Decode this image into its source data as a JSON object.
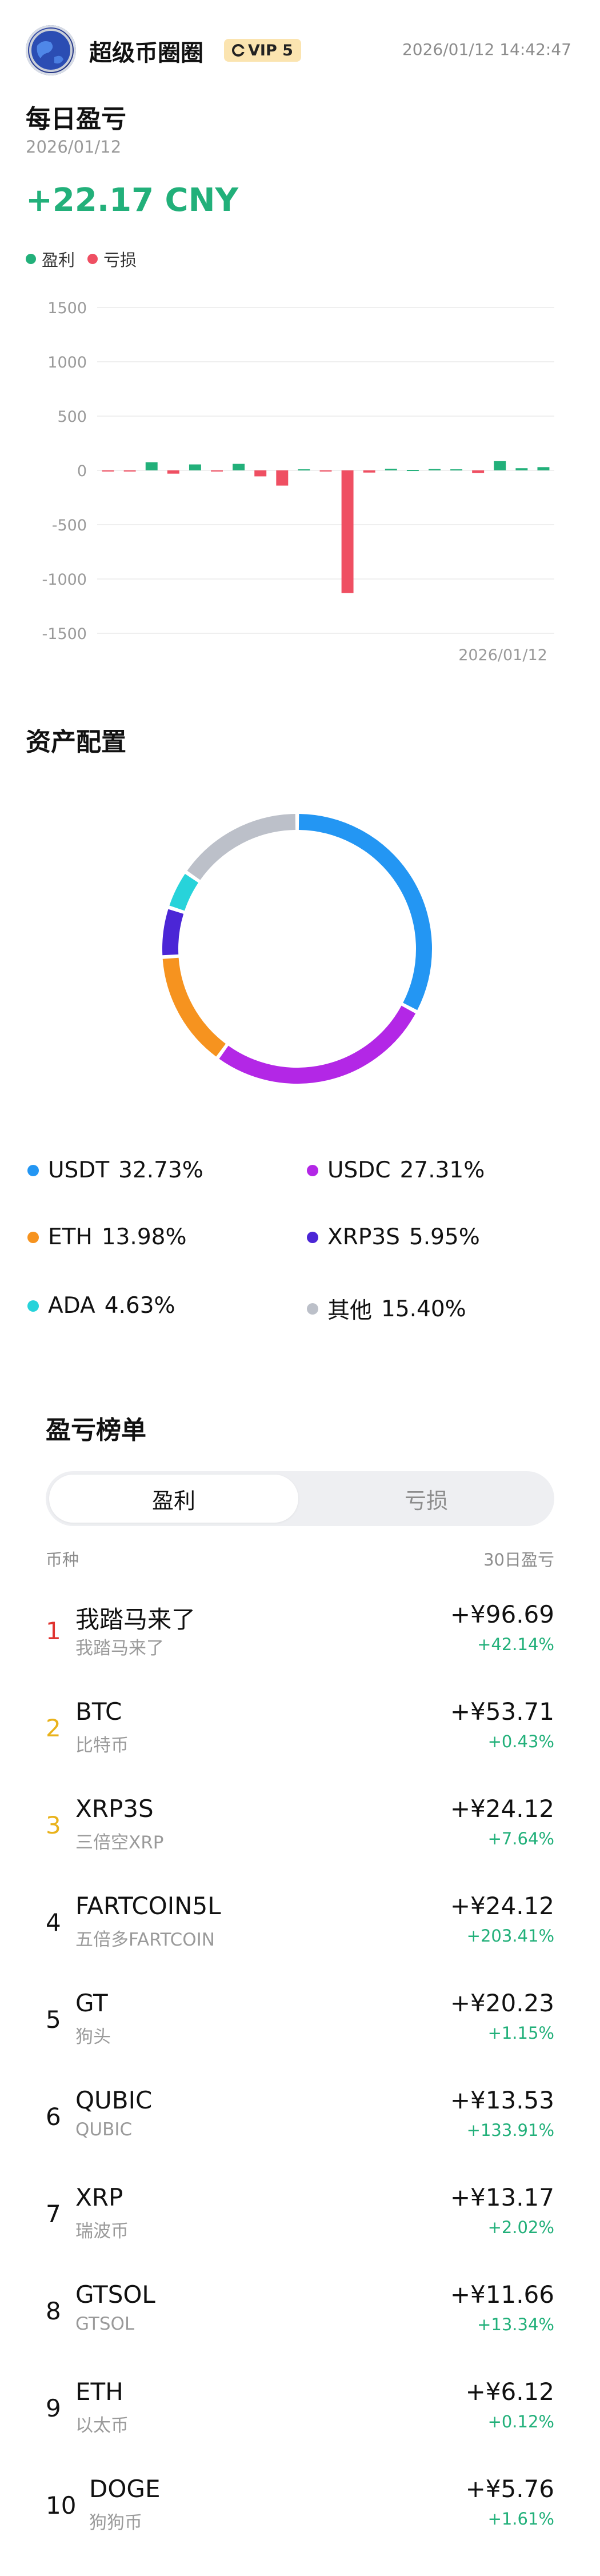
{
  "header": {
    "username": "超级币圈圈",
    "vip_label": "VIP 5",
    "datetime": "2026/01/12 14:42:47"
  },
  "daily_pnl": {
    "title": "每日盈亏",
    "date": "2026/01/12",
    "total": "+22.17 CNY",
    "legend_profit": "盈利",
    "legend_loss": "亏损"
  },
  "chart_data": {
    "type": "bar",
    "x_label_shown": "2026/01/12",
    "ylim": [
      -1500,
      1500
    ],
    "y_ticks": [
      1500,
      1000,
      500,
      0,
      -500,
      -1000,
      -1500
    ],
    "y_tick_labels": [
      "1500",
      "1000",
      "500",
      "0",
      "-500",
      "-1000",
      "-1500"
    ],
    "values": [
      -8,
      -3,
      75,
      -30,
      55,
      -8,
      60,
      -55,
      -140,
      10,
      -5,
      -1130,
      -20,
      15,
      5,
      12,
      10,
      -25,
      85,
      20,
      30
    ],
    "colors": {
      "profit": "#22b07a",
      "loss": "#ef4f62"
    }
  },
  "assets": {
    "title": "资产配置",
    "items": [
      {
        "name": "USDT",
        "percent": "32.73%",
        "value": 32.73,
        "color": "#2396f3"
      },
      {
        "name": "USDC",
        "percent": "27.31%",
        "value": 27.31,
        "color": "#b327e6"
      },
      {
        "name": "ETH",
        "percent": "13.98%",
        "value": 13.98,
        "color": "#f6931f"
      },
      {
        "name": "XRP3S",
        "percent": "5.95%",
        "value": 5.95,
        "color": "#4b26d6"
      },
      {
        "name": "ADA",
        "percent": "4.63%",
        "value": 4.63,
        "color": "#27d3da"
      },
      {
        "name": "其他",
        "percent": "15.40%",
        "value": 15.4,
        "color": "#bcc0c9"
      }
    ]
  },
  "ranking": {
    "title": "盈亏榜单",
    "tab_profit": "盈利",
    "tab_loss": "亏损",
    "col_coin": "币种",
    "col_30d": "30日盈亏",
    "rows": [
      {
        "rank": "1",
        "rank_color": "#e0332f",
        "name": "我踏马来了",
        "cname": "我踏马来了",
        "amount": "+¥96.69",
        "pct": "+42.14%"
      },
      {
        "rank": "2",
        "rank_color": "#e9b21a",
        "name": "BTC",
        "cname": "比特币",
        "amount": "+¥53.71",
        "pct": "+0.43%"
      },
      {
        "rank": "3",
        "rank_color": "#e9b21a",
        "name": "XRP3S",
        "cname": "三倍空XRP",
        "amount": "+¥24.12",
        "pct": "+7.64%"
      },
      {
        "rank": "4",
        "rank_color": "#111111",
        "name": "FARTCOIN5L",
        "cname": "五倍多FARTCOIN",
        "amount": "+¥24.12",
        "pct": "+203.41%"
      },
      {
        "rank": "5",
        "rank_color": "#111111",
        "name": "GT",
        "cname": "狗头",
        "amount": "+¥20.23",
        "pct": "+1.15%"
      },
      {
        "rank": "6",
        "rank_color": "#111111",
        "name": "QUBIC",
        "cname": "QUBIC",
        "amount": "+¥13.53",
        "pct": "+133.91%"
      },
      {
        "rank": "7",
        "rank_color": "#111111",
        "name": "XRP",
        "cname": "瑞波币",
        "amount": "+¥13.17",
        "pct": "+2.02%"
      },
      {
        "rank": "8",
        "rank_color": "#111111",
        "name": "GTSOL",
        "cname": "GTSOL",
        "amount": "+¥11.66",
        "pct": "+13.34%"
      },
      {
        "rank": "9",
        "rank_color": "#111111",
        "name": "ETH",
        "cname": "以太币",
        "amount": "+¥6.12",
        "pct": "+0.12%"
      },
      {
        "rank": "10",
        "rank_color": "#111111",
        "name": "DOGE",
        "cname": "狗狗币",
        "amount": "+¥5.76",
        "pct": "+1.61%"
      }
    ]
  }
}
